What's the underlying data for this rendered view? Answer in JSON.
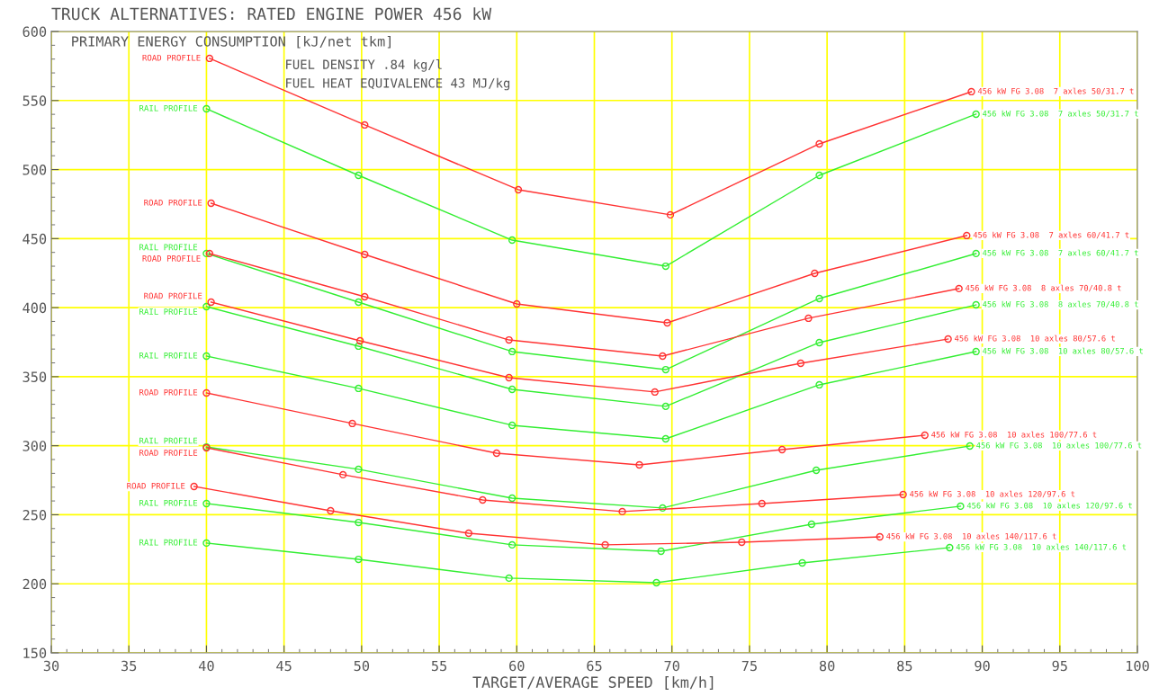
{
  "chart_data": {
    "type": "line",
    "title": "TRUCK ALTERNATIVES: RATED ENGINE POWER 456 kW",
    "ylabel": "PRIMARY ENERGY CONSUMPTION [kJ/net tkm]",
    "xlabel": "TARGET/AVERAGE SPEED [km/h]",
    "xlim": [
      30,
      100
    ],
    "xticks": [
      30,
      35,
      40,
      45,
      50,
      55,
      60,
      65,
      70,
      75,
      80,
      85,
      90,
      95,
      100
    ],
    "ylim": [
      150,
      600
    ],
    "yticks": [
      150,
      200,
      250,
      300,
      350,
      400,
      450,
      500,
      550,
      600
    ],
    "grid": true,
    "legend": false,
    "marker": "circle",
    "line_style": "solid",
    "series": [
      {
        "name": "456 kW FG 3.08  7 axles 50/31.7 t",
        "color": "#ff3333",
        "x": [
          40.2,
          50.2,
          60.1,
          69.9,
          79.5,
          89.3
        ],
        "values": [
          580.5,
          532.3,
          485.4,
          467.2,
          518.6,
          556.4
        ]
      },
      {
        "name": "456 kW FG 3.08  7 axles 50/31.7 t",
        "color": "#33ee33",
        "x": [
          40.0,
          49.8,
          59.7,
          69.6,
          79.5,
          89.6
        ],
        "values": [
          544.0,
          495.8,
          448.9,
          430.0,
          495.8,
          540.1
        ]
      },
      {
        "name": "456 kW FG 3.08  7 axles 60/41.7 t",
        "color": "#ff3333",
        "x": [
          40.3,
          50.2,
          60.0,
          69.7,
          79.2,
          89.0
        ],
        "values": [
          475.6,
          438.5,
          402.7,
          389.0,
          424.8,
          452.2
        ]
      },
      {
        "name": "456 kW FG 3.08  7 axles 60/41.7 t",
        "color": "#33ee33",
        "x": [
          40.0,
          49.8,
          59.7,
          69.6,
          79.5,
          89.6
        ],
        "values": [
          439.2,
          404.0,
          368.2,
          355.1,
          406.6,
          439.2
        ]
      },
      {
        "name": "456 kW FG 3.08  8 axles 70/40.8 t",
        "color": "#ff3333",
        "x": [
          40.2,
          50.2,
          59.5,
          69.4,
          78.8,
          88.5
        ],
        "values": [
          439.2,
          407.9,
          376.6,
          364.9,
          392.3,
          413.8
        ]
      },
      {
        "name": "456 kW FG 3.08  8 axles 70/40.8 t",
        "color": "#33ee33",
        "x": [
          40.0,
          49.8,
          59.7,
          69.6,
          79.5,
          89.6
        ],
        "values": [
          400.7,
          372.1,
          340.8,
          328.5,
          374.7,
          402.0
        ]
      },
      {
        "name": "456 kW FG 3.08  10 axles 80/57.6 t",
        "color": "#ff3333",
        "x": [
          40.3,
          49.9,
          59.5,
          68.9,
          78.3,
          87.8
        ],
        "values": [
          404.0,
          376.0,
          349.3,
          338.9,
          359.7,
          377.3
        ]
      },
      {
        "name": "456 kW FG 3.08  10 axles 80/57.6 t",
        "color": "#33ee33",
        "x": [
          40.0,
          49.8,
          59.7,
          69.6,
          79.5,
          89.6
        ],
        "values": [
          364.9,
          341.5,
          314.8,
          305.0,
          344.1,
          368.2
        ]
      },
      {
        "name": "456 kW FG 3.08  10 axles 100/77.6 t",
        "color": "#ff3333",
        "x": [
          40.0,
          49.4,
          58.7,
          67.9,
          77.1,
          86.3
        ],
        "values": [
          338.2,
          316.1,
          294.6,
          286.1,
          297.2,
          307.6
        ]
      },
      {
        "name": "456 kW FG 3.08  10 axles 100/77.6 t",
        "color": "#33ee33",
        "x": [
          40.0,
          49.8,
          59.7,
          69.4,
          79.3,
          89.2
        ],
        "values": [
          299.1,
          282.9,
          262.0,
          254.9,
          282.2,
          299.8
        ]
      },
      {
        "name": "456 kW FG 3.08  10 axles 120/97.6 t",
        "color": "#ff3333",
        "x": [
          40.0,
          48.8,
          57.8,
          66.8,
          75.8,
          84.9
        ],
        "values": [
          298.5,
          279.0,
          260.7,
          252.3,
          258.1,
          264.6
        ]
      },
      {
        "name": "456 kW FG 3.08  10 axles 120/97.6 t",
        "color": "#33ee33",
        "x": [
          40.0,
          49.8,
          59.7,
          69.3,
          79.0,
          88.6
        ],
        "values": [
          258.1,
          244.4,
          228.2,
          223.6,
          243.1,
          256.2
        ]
      },
      {
        "name": "456 kW FG 3.08  10 axles 140/117.6 t",
        "color": "#ff3333",
        "x": [
          39.2,
          48.0,
          56.9,
          65.7,
          74.5,
          83.4
        ],
        "values": [
          270.5,
          252.9,
          236.6,
          228.2,
          230.1,
          234.0
        ]
      },
      {
        "name": "456 kW FG 3.08  10 axles 140/117.6 t",
        "color": "#33ee33",
        "x": [
          40.0,
          49.8,
          59.5,
          69.0,
          78.4,
          87.9
        ],
        "values": [
          229.5,
          217.7,
          204.1,
          200.8,
          215.1,
          226.2
        ]
      }
    ],
    "annotations": [
      "FUEL DENSITY .84 kg/l",
      "FUEL HEAT EQUIVALENCE 43 MJ/kg",
      {
        "text": "ROAD PROFILE",
        "x": 40.2,
        "y": 580.5
      },
      {
        "text": "RAIL PROFILE",
        "x": 40.0,
        "y": 544.0
      },
      {
        "text": "ROAD PROFILE",
        "x": 40.3,
        "y": 475.6
      },
      {
        "text": "RAIL PROFILE",
        "x": 40.0,
        "y": 439.2
      },
      {
        "text": "ROAD PROFILE",
        "x": 40.2,
        "y": 439.2
      },
      {
        "text": "RAIL PROFILE",
        "x": 40.0,
        "y": 400.7
      },
      {
        "text": "ROAD PROFILE",
        "x": 40.3,
        "y": 404.0
      },
      {
        "text": "RAIL PROFILE",
        "x": 40.0,
        "y": 364.9
      },
      {
        "text": "ROAD PROFILE",
        "x": 40.0,
        "y": 338.2
      },
      {
        "text": "RAIL PROFILE",
        "x": 40.0,
        "y": 299.1
      },
      {
        "text": "ROAD PROFILE",
        "x": 40.0,
        "y": 298.5
      },
      {
        "text": "RAIL PROFILE",
        "x": 40.0,
        "y": 258.1
      },
      {
        "text": "ROAD PROFILE",
        "x": 39.2,
        "y": 270.5
      },
      {
        "text": "RAIL PROFILE",
        "x": 40.0,
        "y": 229.5
      }
    ]
  }
}
